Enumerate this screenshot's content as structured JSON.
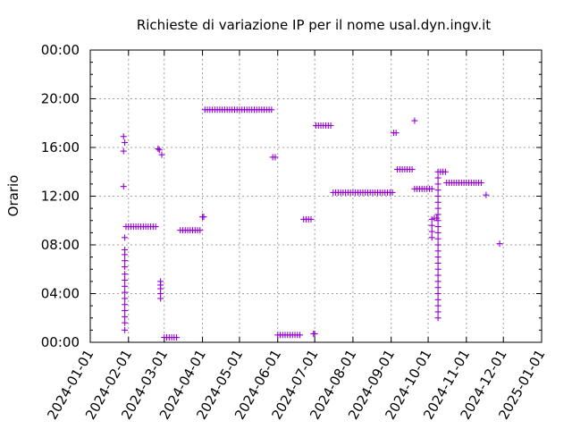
{
  "chart_data": {
    "type": "scatter",
    "title": "Richieste di variazione IP per il nome usal.dyn.ingv.it",
    "ylabel": "Orario",
    "xlabel": "",
    "grid": true,
    "legend": "none",
    "marker": "plus",
    "color": "#9400d3",
    "xlim": [
      "2024-01-01",
      "2025-01-01"
    ],
    "ylim": [
      0,
      24
    ],
    "x_ticks": [
      "2024-01-01",
      "2024-02-01",
      "2024-03-01",
      "2024-04-01",
      "2024-05-01",
      "2024-06-01",
      "2024-07-01",
      "2024-08-01",
      "2024-09-01",
      "2024-10-01",
      "2024-11-01",
      "2024-12-01",
      "2025-01-01"
    ],
    "y_ticks": [
      "00:00",
      "04:00",
      "08:00",
      "12:00",
      "16:00",
      "20:00",
      "00:00"
    ],
    "points": [
      [
        "2024-01-28",
        12.8
      ],
      [
        "2024-01-28",
        15.7
      ],
      [
        "2024-01-28",
        16.9
      ],
      [
        "2024-01-29",
        16.4
      ],
      [
        "2024-01-29",
        8.6
      ],
      [
        "2024-01-29",
        7.6
      ],
      [
        "2024-01-29",
        7.2
      ],
      [
        "2024-01-29",
        6.7
      ],
      [
        "2024-01-29",
        6.2
      ],
      [
        "2024-01-29",
        5.6
      ],
      [
        "2024-01-29",
        5.1
      ],
      [
        "2024-01-29",
        4.6
      ],
      [
        "2024-01-29",
        4.1
      ],
      [
        "2024-01-29",
        3.6
      ],
      [
        "2024-01-29",
        3.1
      ],
      [
        "2024-01-29",
        2.6
      ],
      [
        "2024-01-29",
        2.1
      ],
      [
        "2024-01-29",
        1.6
      ],
      [
        "2024-01-29",
        1.0
      ],
      [
        "2024-01-30",
        9.5
      ],
      [
        "2024-02-01",
        9.5
      ],
      [
        "2024-02-03",
        9.5
      ],
      [
        "2024-02-05",
        9.5
      ],
      [
        "2024-02-07",
        9.5
      ],
      [
        "2024-02-09",
        9.5
      ],
      [
        "2024-02-11",
        9.5
      ],
      [
        "2024-02-13",
        9.5
      ],
      [
        "2024-02-15",
        9.5
      ],
      [
        "2024-02-17",
        9.5
      ],
      [
        "2024-02-19",
        9.5
      ],
      [
        "2024-02-21",
        9.5
      ],
      [
        "2024-02-23",
        9.5
      ],
      [
        "2024-02-25",
        15.9
      ],
      [
        "2024-02-26",
        15.8
      ],
      [
        "2024-02-28",
        15.4
      ],
      [
        "2024-02-27",
        5.0
      ],
      [
        "2024-02-27",
        4.7
      ],
      [
        "2024-02-27",
        4.4
      ],
      [
        "2024-02-27",
        4.0
      ],
      [
        "2024-02-27",
        3.6
      ],
      [
        "2024-03-01",
        0.4
      ],
      [
        "2024-03-03",
        0.4
      ],
      [
        "2024-03-05",
        0.4
      ],
      [
        "2024-03-07",
        0.4
      ],
      [
        "2024-03-09",
        0.4
      ],
      [
        "2024-03-11",
        0.4
      ],
      [
        "2024-03-14",
        9.2
      ],
      [
        "2024-03-16",
        9.2
      ],
      [
        "2024-03-18",
        9.2
      ],
      [
        "2024-03-20",
        9.2
      ],
      [
        "2024-03-22",
        9.2
      ],
      [
        "2024-03-24",
        9.2
      ],
      [
        "2024-03-26",
        9.2
      ],
      [
        "2024-03-28",
        9.2
      ],
      [
        "2024-03-30",
        9.2
      ],
      [
        "2024-04-01",
        10.3
      ],
      [
        "2024-04-02",
        10.3
      ],
      [
        "2024-04-03",
        19.1
      ],
      [
        "2024-04-05",
        19.1
      ],
      [
        "2024-04-07",
        19.1
      ],
      [
        "2024-04-09",
        19.1
      ],
      [
        "2024-04-11",
        19.1
      ],
      [
        "2024-04-13",
        19.1
      ],
      [
        "2024-04-15",
        19.1
      ],
      [
        "2024-04-17",
        19.1
      ],
      [
        "2024-04-19",
        19.1
      ],
      [
        "2024-04-21",
        19.1
      ],
      [
        "2024-04-23",
        19.1
      ],
      [
        "2024-04-25",
        19.1
      ],
      [
        "2024-04-27",
        19.1
      ],
      [
        "2024-04-29",
        19.1
      ],
      [
        "2024-05-01",
        19.1
      ],
      [
        "2024-05-03",
        19.1
      ],
      [
        "2024-05-05",
        19.1
      ],
      [
        "2024-05-07",
        19.1
      ],
      [
        "2024-05-09",
        19.1
      ],
      [
        "2024-05-11",
        19.1
      ],
      [
        "2024-05-13",
        19.1
      ],
      [
        "2024-05-15",
        19.1
      ],
      [
        "2024-05-17",
        19.1
      ],
      [
        "2024-05-19",
        19.1
      ],
      [
        "2024-05-21",
        19.1
      ],
      [
        "2024-05-23",
        19.1
      ],
      [
        "2024-05-25",
        19.1
      ],
      [
        "2024-05-27",
        19.1
      ],
      [
        "2024-05-28",
        15.2
      ],
      [
        "2024-05-30",
        15.2
      ],
      [
        "2024-06-01",
        0.6
      ],
      [
        "2024-06-03",
        0.6
      ],
      [
        "2024-06-05",
        0.6
      ],
      [
        "2024-06-07",
        0.6
      ],
      [
        "2024-06-09",
        0.6
      ],
      [
        "2024-06-11",
        0.6
      ],
      [
        "2024-06-13",
        0.6
      ],
      [
        "2024-06-15",
        0.6
      ],
      [
        "2024-06-17",
        0.6
      ],
      [
        "2024-06-19",
        0.6
      ],
      [
        "2024-06-22",
        10.1
      ],
      [
        "2024-06-24",
        10.1
      ],
      [
        "2024-06-26",
        10.1
      ],
      [
        "2024-06-28",
        10.1
      ],
      [
        "2024-06-30",
        0.7
      ],
      [
        "2024-07-01",
        0.7
      ],
      [
        "2024-07-02",
        17.8
      ],
      [
        "2024-07-04",
        17.8
      ],
      [
        "2024-07-06",
        17.8
      ],
      [
        "2024-07-08",
        17.8
      ],
      [
        "2024-07-10",
        17.8
      ],
      [
        "2024-07-12",
        17.8
      ],
      [
        "2024-07-14",
        17.8
      ],
      [
        "2024-07-16",
        12.3
      ],
      [
        "2024-07-18",
        12.3
      ],
      [
        "2024-07-20",
        12.3
      ],
      [
        "2024-07-22",
        12.3
      ],
      [
        "2024-07-24",
        12.3
      ],
      [
        "2024-07-26",
        12.3
      ],
      [
        "2024-07-28",
        12.3
      ],
      [
        "2024-07-30",
        12.3
      ],
      [
        "2024-08-01",
        12.3
      ],
      [
        "2024-08-03",
        12.3
      ],
      [
        "2024-08-05",
        12.3
      ],
      [
        "2024-08-07",
        12.3
      ],
      [
        "2024-08-09",
        12.3
      ],
      [
        "2024-08-11",
        12.3
      ],
      [
        "2024-08-13",
        12.3
      ],
      [
        "2024-08-15",
        12.3
      ],
      [
        "2024-08-17",
        12.3
      ],
      [
        "2024-08-19",
        12.3
      ],
      [
        "2024-08-21",
        12.3
      ],
      [
        "2024-08-23",
        12.3
      ],
      [
        "2024-08-25",
        12.3
      ],
      [
        "2024-08-27",
        12.3
      ],
      [
        "2024-08-29",
        12.3
      ],
      [
        "2024-08-31",
        12.3
      ],
      [
        "2024-09-02",
        12.3
      ],
      [
        "2024-09-03",
        17.2
      ],
      [
        "2024-09-05",
        17.2
      ],
      [
        "2024-09-06",
        14.2
      ],
      [
        "2024-09-08",
        14.2
      ],
      [
        "2024-09-10",
        14.2
      ],
      [
        "2024-09-12",
        14.2
      ],
      [
        "2024-09-14",
        14.2
      ],
      [
        "2024-09-16",
        14.2
      ],
      [
        "2024-09-18",
        14.2
      ],
      [
        "2024-09-20",
        18.2
      ],
      [
        "2024-09-20",
        12.6
      ],
      [
        "2024-09-22",
        12.6
      ],
      [
        "2024-09-24",
        12.6
      ],
      [
        "2024-09-26",
        12.6
      ],
      [
        "2024-09-28",
        12.6
      ],
      [
        "2024-09-30",
        12.6
      ],
      [
        "2024-10-02",
        12.6
      ],
      [
        "2024-10-04",
        12.6
      ],
      [
        "2024-10-04",
        10.1
      ],
      [
        "2024-10-04",
        9.6
      ],
      [
        "2024-10-04",
        9.1
      ],
      [
        "2024-10-04",
        8.6
      ],
      [
        "2024-10-06",
        10.2
      ],
      [
        "2024-10-08",
        10.2
      ],
      [
        "2024-10-09",
        14.0
      ],
      [
        "2024-10-09",
        13.5
      ],
      [
        "2024-10-09",
        13.0
      ],
      [
        "2024-10-09",
        12.5
      ],
      [
        "2024-10-09",
        12.0
      ],
      [
        "2024-10-09",
        11.5
      ],
      [
        "2024-10-09",
        11.0
      ],
      [
        "2024-10-09",
        10.5
      ],
      [
        "2024-10-09",
        10.0
      ],
      [
        "2024-10-09",
        9.5
      ],
      [
        "2024-10-09",
        9.0
      ],
      [
        "2024-10-09",
        8.5
      ],
      [
        "2024-10-09",
        8.0
      ],
      [
        "2024-10-09",
        7.5
      ],
      [
        "2024-10-09",
        7.0
      ],
      [
        "2024-10-09",
        6.5
      ],
      [
        "2024-10-09",
        6.0
      ],
      [
        "2024-10-09",
        5.5
      ],
      [
        "2024-10-09",
        5.0
      ],
      [
        "2024-10-09",
        4.5
      ],
      [
        "2024-10-09",
        4.0
      ],
      [
        "2024-10-09",
        3.5
      ],
      [
        "2024-10-09",
        3.0
      ],
      [
        "2024-10-09",
        2.5
      ],
      [
        "2024-10-09",
        2.0
      ],
      [
        "2024-10-11",
        14.0
      ],
      [
        "2024-10-13",
        14.0
      ],
      [
        "2024-10-15",
        14.0
      ],
      [
        "2024-10-16",
        13.1
      ],
      [
        "2024-10-18",
        13.1
      ],
      [
        "2024-10-20",
        13.1
      ],
      [
        "2024-10-22",
        13.1
      ],
      [
        "2024-10-24",
        13.1
      ],
      [
        "2024-10-26",
        13.1
      ],
      [
        "2024-10-28",
        13.1
      ],
      [
        "2024-10-30",
        13.1
      ],
      [
        "2024-11-01",
        13.1
      ],
      [
        "2024-11-03",
        13.1
      ],
      [
        "2024-11-05",
        13.1
      ],
      [
        "2024-11-07",
        13.1
      ],
      [
        "2024-11-09",
        13.1
      ],
      [
        "2024-11-11",
        13.1
      ],
      [
        "2024-11-13",
        13.1
      ],
      [
        "2024-11-17",
        12.1
      ],
      [
        "2024-11-28",
        8.1
      ]
    ]
  }
}
